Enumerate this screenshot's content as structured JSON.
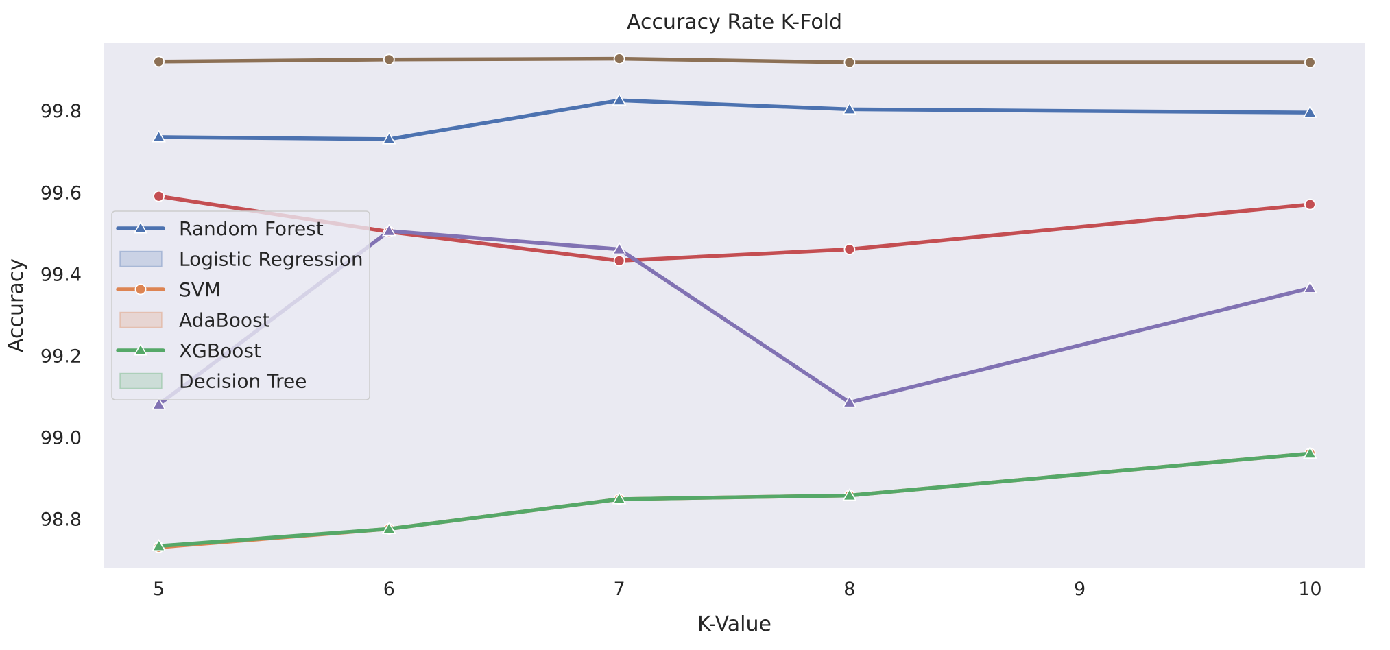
{
  "chart_data": {
    "type": "line",
    "title": "Accuracy Rate K-Fold",
    "xlabel": "K-Value",
    "ylabel": "Accuracy",
    "x_ticks": [
      5,
      6,
      7,
      8,
      9,
      10
    ],
    "y_ticks": [
      "98.8",
      "99.0",
      "99.2",
      "99.4",
      "99.6",
      "99.8"
    ],
    "xlim": [
      4.76,
      10.24
    ],
    "ylim": [
      98.68,
      99.965
    ],
    "grid": false,
    "background": "#eaeaf2",
    "legend_placement": "center-left",
    "series": [
      {
        "line_id": "random-forest-line",
        "color": "#4c72b0",
        "marker": "triangle",
        "x": [
          5,
          6,
          7,
          8,
          10
        ],
        "values": [
          99.735,
          99.73,
          99.825,
          99.803,
          99.795
        ]
      },
      {
        "line_id": "brown-line",
        "color": "#8c7055",
        "marker": "circle",
        "x": [
          5,
          6,
          7,
          8,
          10
        ],
        "values": [
          99.92,
          99.925,
          99.927,
          99.918,
          99.918
        ]
      },
      {
        "line_id": "red-line",
        "color": "#c44e52",
        "marker": "circle",
        "x": [
          5,
          6,
          7,
          8,
          10
        ],
        "values": [
          99.59,
          99.503,
          99.432,
          99.46,
          99.57
        ]
      },
      {
        "line_id": "purple-line",
        "color": "#8172b3",
        "marker": "triangle",
        "x": [
          5,
          6,
          7,
          8,
          10
        ],
        "values": [
          99.08,
          99.505,
          99.46,
          99.085,
          99.365
        ]
      },
      {
        "line_id": "svm-line",
        "color": "#dd8452",
        "marker": "circle",
        "x": [
          5,
          6,
          7,
          8,
          10
        ],
        "values": [
          98.73,
          98.775,
          98.848,
          98.857,
          98.96
        ]
      },
      {
        "line_id": "xgboost-line",
        "color": "#55a868",
        "marker": "triangle",
        "x": [
          5,
          6,
          7,
          8,
          10
        ],
        "values": [
          98.733,
          98.775,
          98.848,
          98.857,
          98.96
        ]
      }
    ],
    "legend": [
      {
        "label": "Random Forest",
        "kind": "line",
        "color": "#4c72b0",
        "marker": "triangle"
      },
      {
        "label": "Logistic Regression",
        "kind": "band",
        "color": "#4c72b0"
      },
      {
        "label": "SVM",
        "kind": "line",
        "color": "#dd8452",
        "marker": "circle"
      },
      {
        "label": "AdaBoost",
        "kind": "band",
        "color": "#dd8452"
      },
      {
        "label": "XGBoost",
        "kind": "line",
        "color": "#55a868",
        "marker": "triangle"
      },
      {
        "label": "Decision Tree",
        "kind": "band",
        "color": "#55a868"
      }
    ]
  }
}
